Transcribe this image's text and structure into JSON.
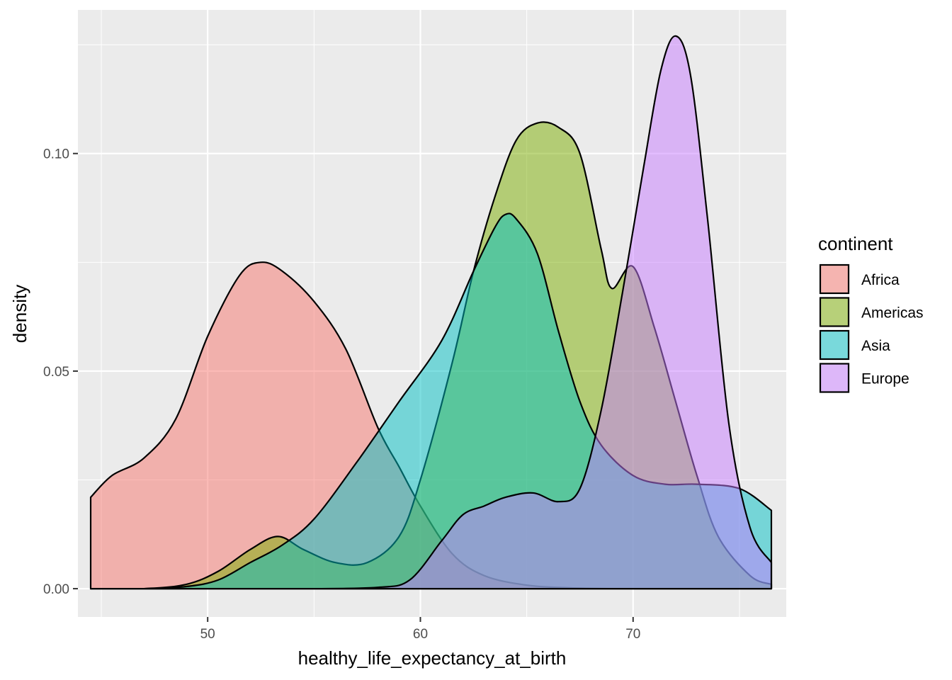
{
  "chart_data": {
    "type": "area",
    "subtype": "density",
    "xlabel": "healthy_life_expectancy_at_birth",
    "ylabel": "density",
    "xlim": [
      43.9,
      77.2
    ],
    "ylim": [
      -0.0065,
      0.133
    ],
    "x_ticks": [
      50,
      60,
      70
    ],
    "y_ticks": [
      0.0,
      0.05,
      0.1
    ],
    "x_tick_labels": [
      "50",
      "60",
      "70"
    ],
    "y_tick_labels": [
      "0.00",
      "0.05",
      "0.10"
    ],
    "grid": true,
    "legend": {
      "title": "continent",
      "position": "right"
    },
    "series": [
      {
        "name": "Africa",
        "color": "#F8766D",
        "x": [
          44.5,
          45.5,
          47.0,
          48.5,
          50.0,
          51.5,
          52.5,
          53.5,
          55.0,
          56.5,
          58.0,
          59.0,
          60.0,
          61.5,
          63.0,
          65.0,
          67.0,
          69.0,
          71.0,
          73.0,
          75.0,
          76.5
        ],
        "y": [
          0.021,
          0.026,
          0.03,
          0.039,
          0.058,
          0.072,
          0.075,
          0.073,
          0.066,
          0.055,
          0.037,
          0.028,
          0.019,
          0.008,
          0.003,
          0.0008,
          0.0002,
          0.0,
          0.0,
          0.0,
          0.0,
          0.0
        ]
      },
      {
        "name": "Americas",
        "color": "#7CAE00",
        "x": [
          44.5,
          47.0,
          49.0,
          50.5,
          52.0,
          53.3,
          54.5,
          56.0,
          57.5,
          59.0,
          60.0,
          61.5,
          62.5,
          63.5,
          64.5,
          65.5,
          66.5,
          67.5,
          68.5,
          69.0,
          70.0,
          71.0,
          72.0,
          73.0,
          74.0,
          75.5,
          76.5
        ],
        "y": [
          0.0,
          0.0,
          0.001,
          0.004,
          0.009,
          0.012,
          0.009,
          0.006,
          0.006,
          0.012,
          0.025,
          0.052,
          0.073,
          0.09,
          0.103,
          0.107,
          0.106,
          0.1,
          0.078,
          0.069,
          0.074,
          0.06,
          0.043,
          0.026,
          0.012,
          0.003,
          0.001
        ]
      },
      {
        "name": "Asia",
        "color": "#00BFC4",
        "x": [
          44.5,
          47.0,
          49.0,
          50.5,
          52.0,
          53.5,
          55.0,
          57.0,
          59.0,
          61.0,
          62.5,
          63.5,
          64.0,
          64.5,
          65.5,
          66.5,
          67.5,
          68.5,
          70.0,
          71.5,
          73.0,
          75.0,
          76.5
        ],
        "y": [
          0.0,
          0.0,
          0.0005,
          0.002,
          0.006,
          0.01,
          0.016,
          0.029,
          0.043,
          0.057,
          0.073,
          0.083,
          0.086,
          0.085,
          0.077,
          0.059,
          0.043,
          0.033,
          0.026,
          0.024,
          0.024,
          0.023,
          0.018
        ]
      },
      {
        "name": "Europe",
        "color": "#C77CFF",
        "x": [
          44.5,
          50.0,
          55.0,
          58.0,
          59.5,
          61.0,
          62.0,
          63.0,
          64.0,
          65.3,
          66.5,
          67.5,
          68.5,
          69.5,
          70.5,
          71.3,
          72.0,
          72.7,
          73.5,
          74.5,
          75.5,
          76.5
        ],
        "y": [
          0.0,
          0.0,
          0.0,
          0.0003,
          0.002,
          0.011,
          0.017,
          0.019,
          0.021,
          0.022,
          0.02,
          0.023,
          0.041,
          0.068,
          0.097,
          0.119,
          0.127,
          0.118,
          0.085,
          0.038,
          0.014,
          0.006
        ]
      }
    ]
  }
}
